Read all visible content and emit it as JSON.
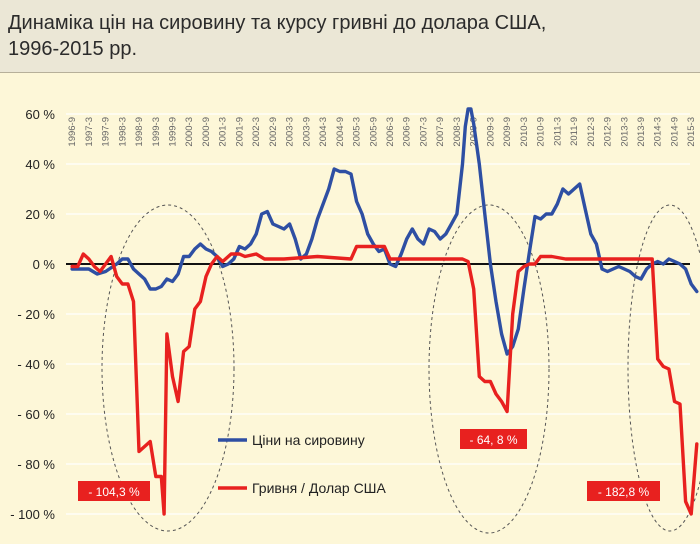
{
  "title_lines": [
    "Динаміка цін на сировину та курсу гривні до долара США,",
    "1996-2015 рр."
  ],
  "colors": {
    "prices": "#2e4fa3",
    "hryvnia": "#e8211f",
    "band": "#ebe7d6",
    "plot_bg": "#fdf7d8",
    "zero_line": "#111111",
    "grid": "#ffffff",
    "ellipse": "#555555"
  },
  "chart_data": {
    "type": "line",
    "title": "Динаміка цін на сировину та курсу гривні до долара США, 1996-2015 рр.",
    "xlabel": "",
    "ylabel": "",
    "ylim": [
      -100,
      60
    ],
    "yticks": [
      60,
      40,
      20,
      0,
      -20,
      -40,
      -60,
      -80,
      -100
    ],
    "ytick_labels": [
      "60 %",
      "40 %",
      "20 %",
      "0 %",
      "- 20 %",
      "- 40 %",
      "- 60 %",
      "- 80 %",
      "- 100 %"
    ],
    "xticks": [
      "1996-9",
      "1997-3",
      "1997-9",
      "1998-3",
      "1998-9",
      "1999-3",
      "1999-9",
      "2000-3",
      "2000-9",
      "2001-3",
      "2001-9",
      "2002-3",
      "2002-9",
      "2003-3",
      "2003-9",
      "2004-3",
      "2004-9",
      "2005-3",
      "2005-9",
      "2006-3",
      "2006-9",
      "2007-3",
      "2007-9",
      "2008-3",
      "2008-9",
      "2009-3",
      "2009-9",
      "2010-3",
      "2010-9",
      "2011-3",
      "2011-9",
      "2012-3",
      "2012-9",
      "2013-3",
      "2013-9",
      "2014-3",
      "2014-9",
      "2015-3"
    ],
    "grid": true,
    "legend_position": "bottom-center",
    "series": [
      {
        "name": "Ціни на сировину",
        "color": "#2e4fa3",
        "points": [
          [
            "1996-9",
            -2
          ],
          [
            "1997-3",
            -2
          ],
          [
            "1997-6",
            -4
          ],
          [
            "1997-9",
            -3
          ],
          [
            "1998-1",
            0
          ],
          [
            "1998-3",
            2
          ],
          [
            "1998-5",
            2
          ],
          [
            "1998-7",
            -2
          ],
          [
            "1998-9",
            -4
          ],
          [
            "1998-11",
            -6
          ],
          [
            "1999-1",
            -10
          ],
          [
            "1999-3",
            -10
          ],
          [
            "1999-5",
            -9
          ],
          [
            "1999-7",
            -6
          ],
          [
            "1999-9",
            -7
          ],
          [
            "1999-11",
            -4
          ],
          [
            "2000-1",
            3
          ],
          [
            "2000-3",
            3
          ],
          [
            "2000-5",
            6
          ],
          [
            "2000-7",
            8
          ],
          [
            "2000-9",
            6
          ],
          [
            "2000-11",
            5
          ],
          [
            "2001-1",
            3
          ],
          [
            "2001-3",
            -1
          ],
          [
            "2001-5",
            0
          ],
          [
            "2001-7",
            2
          ],
          [
            "2001-9",
            7
          ],
          [
            "2001-11",
            6
          ],
          [
            "2002-1",
            8
          ],
          [
            "2002-3",
            12
          ],
          [
            "2002-5",
            20
          ],
          [
            "2002-7",
            21
          ],
          [
            "2002-9",
            16
          ],
          [
            "2002-11",
            15
          ],
          [
            "2003-1",
            14
          ],
          [
            "2003-3",
            16
          ],
          [
            "2003-5",
            10
          ],
          [
            "2003-7",
            2
          ],
          [
            "2003-9",
            4
          ],
          [
            "2003-11",
            10
          ],
          [
            "2004-1",
            18
          ],
          [
            "2004-3",
            24
          ],
          [
            "2004-5",
            30
          ],
          [
            "2004-7",
            38
          ],
          [
            "2004-9",
            37
          ],
          [
            "2004-11",
            37
          ],
          [
            "2005-1",
            36
          ],
          [
            "2005-3",
            25
          ],
          [
            "2005-5",
            20
          ],
          [
            "2005-7",
            12
          ],
          [
            "2005-9",
            8
          ],
          [
            "2005-11",
            5
          ],
          [
            "2006-1",
            6
          ],
          [
            "2006-3",
            0
          ],
          [
            "2006-5",
            -1
          ],
          [
            "2006-7",
            4
          ],
          [
            "2006-9",
            10
          ],
          [
            "2006-11",
            14
          ],
          [
            "2007-1",
            10
          ],
          [
            "2007-3",
            8
          ],
          [
            "2007-5",
            14
          ],
          [
            "2007-7",
            13
          ],
          [
            "2007-9",
            10
          ],
          [
            "2007-11",
            12
          ],
          [
            "2008-1",
            16
          ],
          [
            "2008-3",
            20
          ],
          [
            "2008-5",
            40
          ],
          [
            "2008-6",
            55
          ],
          [
            "2008-7",
            62
          ],
          [
            "2008-8",
            62
          ],
          [
            "2008-9",
            56
          ],
          [
            "2008-11",
            40
          ],
          [
            "2009-1",
            20
          ],
          [
            "2009-3",
            0
          ],
          [
            "2009-5",
            -15
          ],
          [
            "2009-7",
            -28
          ],
          [
            "2009-9",
            -36
          ],
          [
            "2009-11",
            -33
          ],
          [
            "2010-1",
            -26
          ],
          [
            "2010-3",
            -10
          ],
          [
            "2010-5",
            5
          ],
          [
            "2010-7",
            19
          ],
          [
            "2010-9",
            18
          ],
          [
            "2010-11",
            20
          ],
          [
            "2011-1",
            20
          ],
          [
            "2011-3",
            24
          ],
          [
            "2011-5",
            30
          ],
          [
            "2011-7",
            28
          ],
          [
            "2011-9",
            30
          ],
          [
            "2011-11",
            32
          ],
          [
            "2012-1",
            22
          ],
          [
            "2012-3",
            12
          ],
          [
            "2012-5",
            8
          ],
          [
            "2012-7",
            -2
          ],
          [
            "2012-9",
            -3
          ],
          [
            "2012-11",
            -2
          ],
          [
            "2013-1",
            -1
          ],
          [
            "2013-3",
            -2
          ],
          [
            "2013-5",
            -3
          ],
          [
            "2013-7",
            -5
          ],
          [
            "2013-9",
            -6
          ],
          [
            "2013-11",
            -2
          ],
          [
            "2014-1",
            0
          ],
          [
            "2014-3",
            1
          ],
          [
            "2014-5",
            0
          ],
          [
            "2014-7",
            2
          ],
          [
            "2014-9",
            1
          ],
          [
            "2014-11",
            0
          ],
          [
            "2015-1",
            -2
          ],
          [
            "2015-3",
            -8
          ],
          [
            "2015-5",
            -11
          ]
        ]
      },
      {
        "name": "Гривня / Долар США",
        "color": "#e8211f",
        "points": [
          [
            "1996-9",
            -1
          ],
          [
            "1996-11",
            -1
          ],
          [
            "1997-1",
            4
          ],
          [
            "1997-3",
            2
          ],
          [
            "1997-5",
            -1
          ],
          [
            "1997-7",
            -3
          ],
          [
            "1997-9",
            0
          ],
          [
            "1997-11",
            3
          ],
          [
            "1998-1",
            -5
          ],
          [
            "1998-3",
            -8
          ],
          [
            "1998-5",
            -8
          ],
          [
            "1998-7",
            -15
          ],
          [
            "1998-9",
            -75
          ],
          [
            "1998-11",
            -73
          ],
          [
            "1999-1",
            -71
          ],
          [
            "1999-3",
            -85
          ],
          [
            "1999-5",
            -85
          ],
          [
            "1999-6",
            -100
          ],
          [
            "1999-7",
            -28
          ],
          [
            "1999-9",
            -45
          ],
          [
            "1999-11",
            -55
          ],
          [
            "2000-1",
            -35
          ],
          [
            "2000-3",
            -33
          ],
          [
            "2000-5",
            -18
          ],
          [
            "2000-7",
            -15
          ],
          [
            "2000-9",
            -5
          ],
          [
            "2000-11",
            0
          ],
          [
            "2001-1",
            3
          ],
          [
            "2001-3",
            1
          ],
          [
            "2001-6",
            4
          ],
          [
            "2001-9",
            4
          ],
          [
            "2001-11",
            3
          ],
          [
            "2002-3",
            4
          ],
          [
            "2002-6",
            2
          ],
          [
            "2003-1",
            2
          ],
          [
            "2004-1",
            3
          ],
          [
            "2005-1",
            2
          ],
          [
            "2005-3",
            7
          ],
          [
            "2005-9",
            7
          ],
          [
            "2006-1",
            7
          ],
          [
            "2006-3",
            2
          ],
          [
            "2007-1",
            2
          ],
          [
            "2008-1",
            2
          ],
          [
            "2008-5",
            2
          ],
          [
            "2008-7",
            1
          ],
          [
            "2008-9",
            -10
          ],
          [
            "2008-11",
            -45
          ],
          [
            "2009-1",
            -47
          ],
          [
            "2009-3",
            -47
          ],
          [
            "2009-5",
            -52
          ],
          [
            "2009-7",
            -55
          ],
          [
            "2009-9",
            -59
          ],
          [
            "2009-11",
            -20
          ],
          [
            "2010-1",
            -3
          ],
          [
            "2010-3",
            -1
          ],
          [
            "2010-5",
            0
          ],
          [
            "2010-7",
            0
          ],
          [
            "2010-9",
            3
          ],
          [
            "2011-1",
            3
          ],
          [
            "2011-6",
            2
          ],
          [
            "2012-1",
            2
          ],
          [
            "2013-1",
            2
          ],
          [
            "2014-1",
            2
          ],
          [
            "2014-3",
            -38
          ],
          [
            "2014-5",
            -41
          ],
          [
            "2014-7",
            -42
          ],
          [
            "2014-9",
            -55
          ],
          [
            "2014-11",
            -56
          ],
          [
            "2015-1",
            -95
          ],
          [
            "2015-3",
            -100
          ],
          [
            "2015-5",
            -72
          ]
        ]
      }
    ],
    "annotations": [
      {
        "label": "- 104,3 %"
      },
      {
        "label": "- 64, 8 %"
      },
      {
        "label": "- 182,8 %"
      }
    ]
  }
}
